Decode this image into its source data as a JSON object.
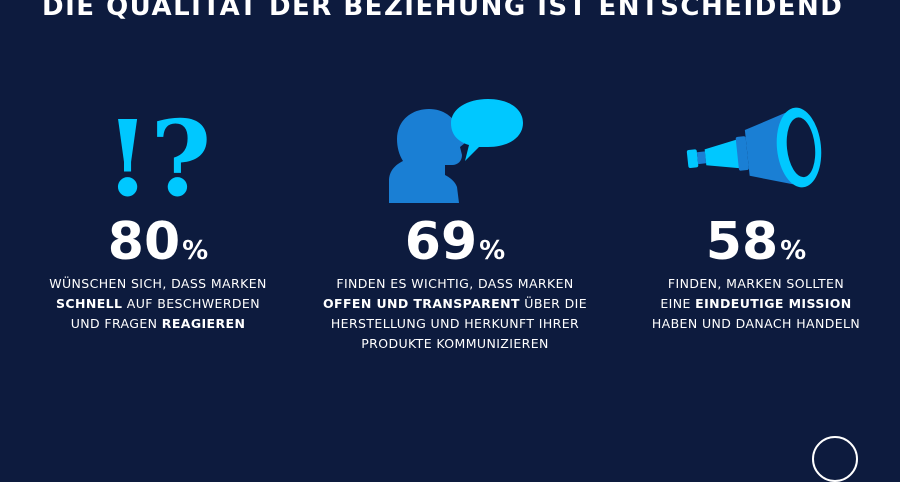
{
  "title": "DIE QUALITÄT DER BEZIEHUNG IST ENTSCHEIDEND",
  "colors": {
    "background": "#0d1b3e",
    "accent_dark": "#1a7fd4",
    "accent_light": "#00c8ff"
  },
  "stats": [
    {
      "icon": "exclamation-question-icon",
      "value": "80",
      "unit": "%",
      "text": [
        {
          "t": "WÜNSCHEN SICH, DASS MARKEN"
        },
        {
          "b": "SCHNELL",
          "t": " AUF BESCHWERDEN"
        },
        {
          "t": "UND FRAGEN ",
          "b": "REAGIEREN"
        }
      ]
    },
    {
      "icon": "speaking-head-icon",
      "value": "69",
      "unit": "%",
      "text": [
        {
          "t": "FINDEN ES WICHTIG, DASS MARKEN"
        },
        {
          "b": "OFFEN UND TRANSPARENT",
          "t": " ÜBER DIE"
        },
        {
          "t": "HERSTELLUNG UND HERKUNFT IHRER"
        },
        {
          "t": "PRODUKTE KOMMUNIZIEREN"
        }
      ]
    },
    {
      "icon": "telescope-icon",
      "value": "58",
      "unit": "%",
      "text": [
        {
          "t": "FINDEN, MARKEN SOLLTEN"
        },
        {
          "t": "EINE ",
          "b": "EINDEUTIGE MISSION"
        },
        {
          "t": "HABEN UND DANACH HANDELN"
        }
      ]
    }
  ]
}
